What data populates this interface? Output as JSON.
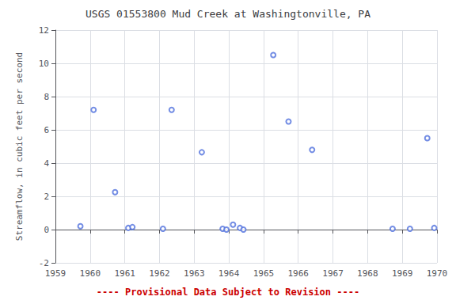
{
  "chart_data": {
    "type": "scatter",
    "title": "USGS 01553800 Mud Creek at Washingtonville, PA",
    "ylabel": "Streamflow, in cubic feet per second",
    "annotations": [
      "---- Provisional Data Subject to Revision ----"
    ],
    "x": [
      1959.72,
      1960.1,
      1960.72,
      1961.1,
      1961.22,
      1962.1,
      1962.35,
      1963.22,
      1963.82,
      1963.93,
      1964.12,
      1964.32,
      1964.42,
      1965.28,
      1965.72,
      1966.4,
      1968.72,
      1969.22,
      1969.72,
      1969.92
    ],
    "values": [
      0.2,
      7.2,
      2.25,
      0.1,
      0.15,
      0.05,
      7.2,
      4.65,
      0.05,
      0.0,
      0.3,
      0.1,
      0.0,
      10.5,
      6.5,
      4.8,
      0.05,
      0.05,
      5.5,
      0.1
    ],
    "xlim": [
      1959,
      1970
    ],
    "ylim": [
      -2,
      12
    ],
    "xticks": [
      1959,
      1960,
      1961,
      1962,
      1963,
      1964,
      1965,
      1966,
      1967,
      1968,
      1969,
      1970
    ],
    "yticks": [
      -2,
      0,
      2,
      4,
      6,
      8,
      10,
      12
    ],
    "marker": "circle",
    "grid": true
  }
}
